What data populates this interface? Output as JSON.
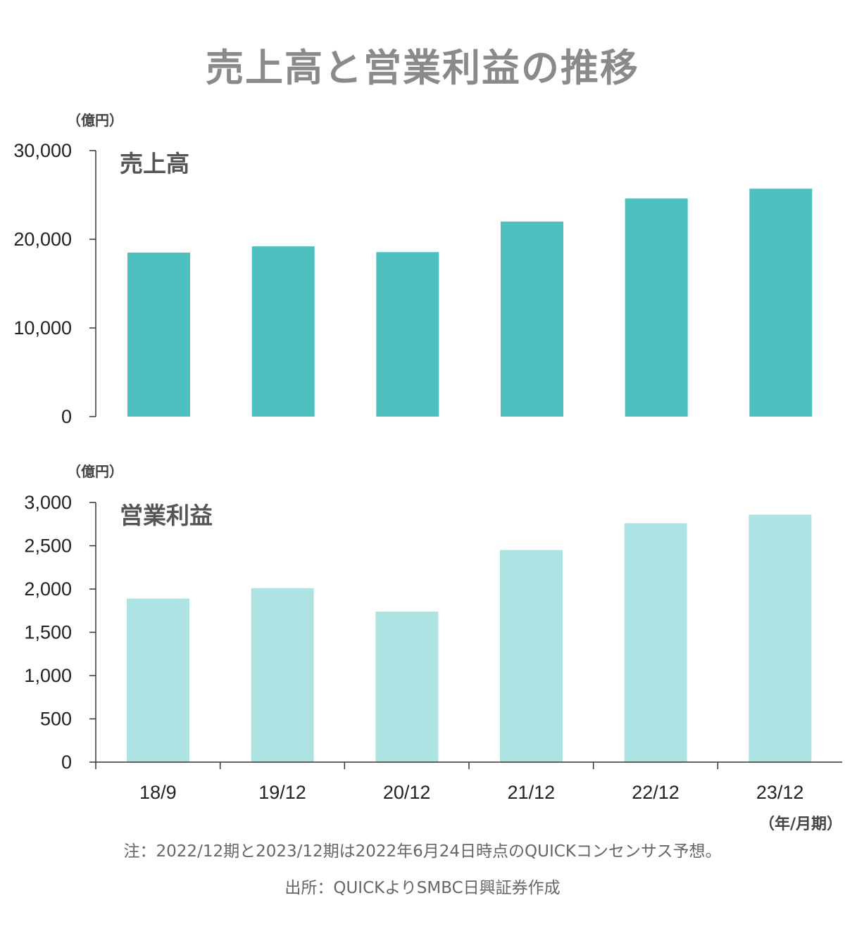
{
  "title": "売上高と営業利益の推移",
  "colors": {
    "sales_bar": "#4cbfbe",
    "op_bar": "#ade4e3",
    "axis": "#333333"
  },
  "chart_data": [
    {
      "type": "bar",
      "title": "売上高",
      "unit_label": "（億円）",
      "categories": [
        "18/9",
        "19/12",
        "20/12",
        "21/12",
        "22/12",
        "23/12"
      ],
      "values": [
        18500,
        19200,
        18550,
        22000,
        24600,
        25700
      ],
      "ylim": [
        0,
        30000
      ],
      "yticks": [
        0,
        10000,
        20000,
        30000
      ],
      "ytick_labels": [
        "0",
        "10,000",
        "20,000",
        "30,000"
      ]
    },
    {
      "type": "bar",
      "title": "営業利益",
      "unit_label": "（億円）",
      "categories": [
        "18/9",
        "19/12",
        "20/12",
        "21/12",
        "22/12",
        "23/12"
      ],
      "values": [
        1890,
        2010,
        1740,
        2450,
        2760,
        2860
      ],
      "ylim": [
        0,
        3000
      ],
      "yticks": [
        0,
        500,
        1000,
        1500,
        2000,
        2500,
        3000
      ],
      "ytick_labels": [
        "0",
        "500",
        "1,000",
        "1,500",
        "2,000",
        "2,500",
        "3,000"
      ],
      "xlabel": "（年/月期）"
    }
  ],
  "notes": {
    "note": "注：2022/12期と2023/12期は2022年6月24日時点のQUICKコンセンサス予想。",
    "source": "出所：QUICKよりSMBC日興証券作成"
  }
}
